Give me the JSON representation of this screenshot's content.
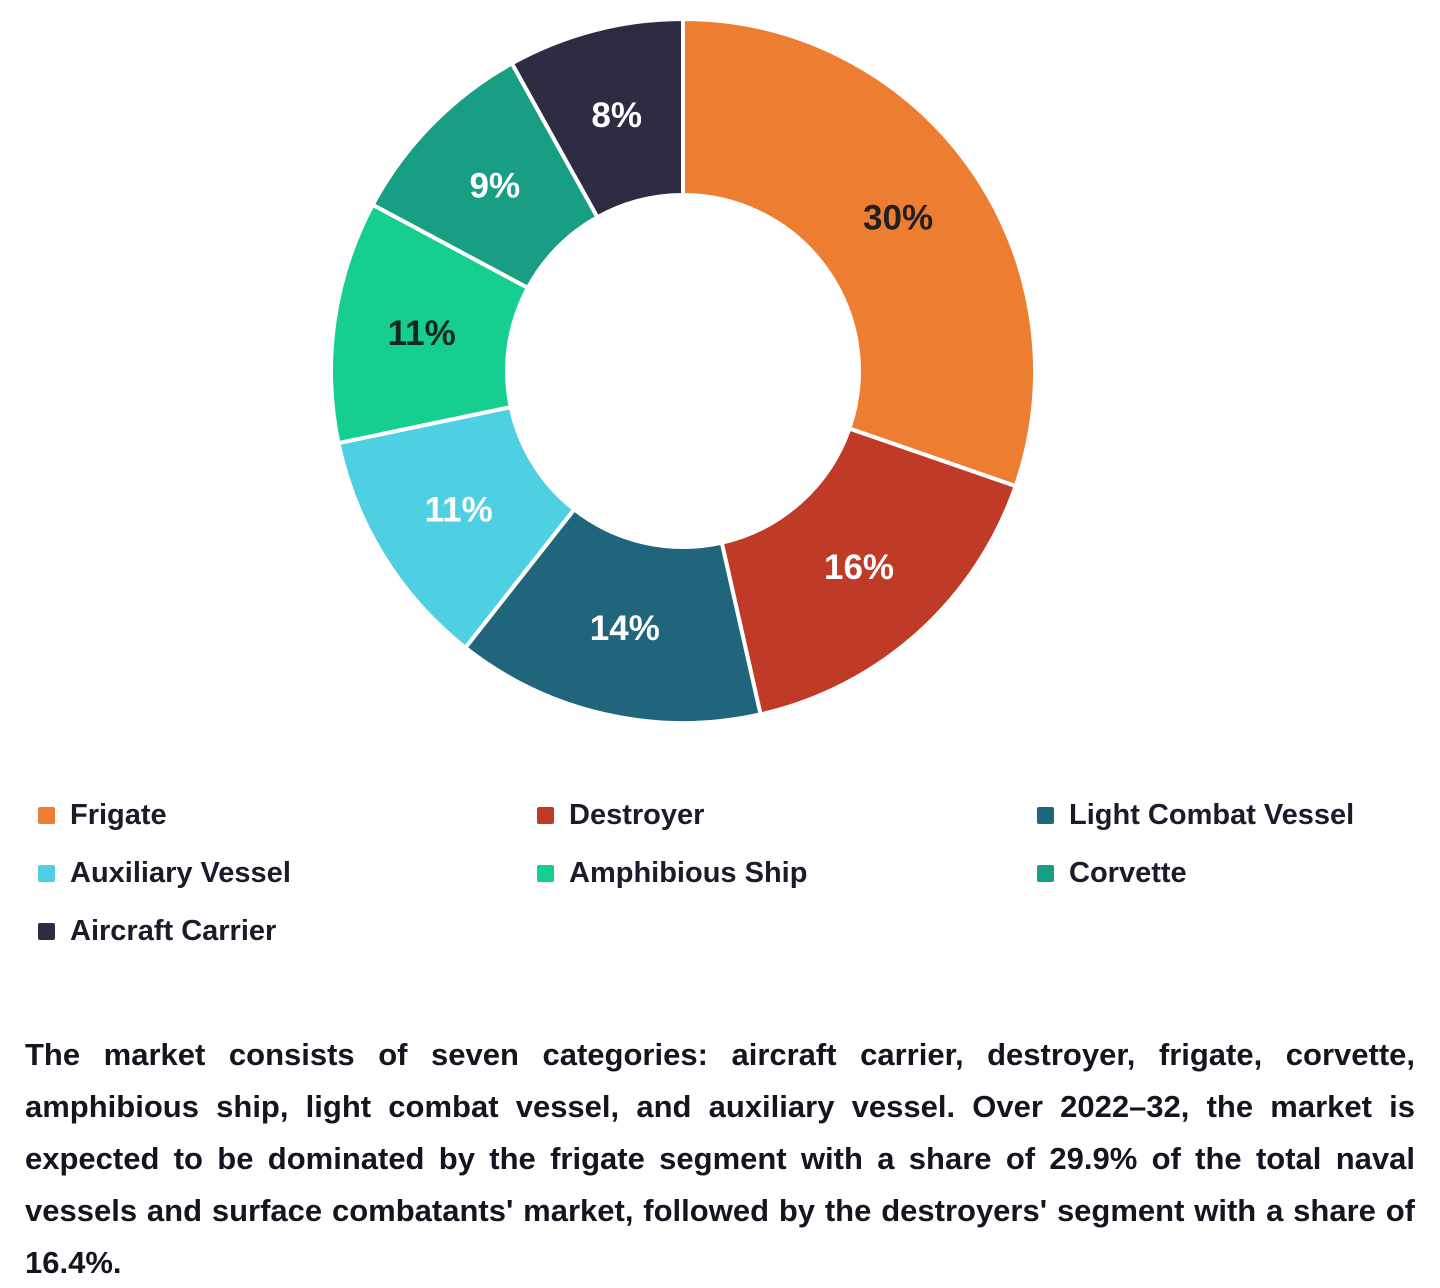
{
  "chart_data": {
    "type": "pie",
    "subtype": "donut",
    "title": "",
    "categories": [
      "Frigate",
      "Destroyer",
      "Light Combat Vessel",
      "Auxiliary Vessel",
      "Amphibious Ship",
      "Corvette",
      "Aircraft Carrier"
    ],
    "values": [
      30,
      16,
      14,
      11,
      11,
      9,
      8
    ],
    "data_labels": [
      "30%",
      "16%",
      "14%",
      "11%",
      "11%",
      "9%",
      "8%"
    ],
    "colors": [
      "#ED7D31",
      "#C03A28",
      "#20657B",
      "#4ED0E2",
      "#15CE8F",
      "#189E82",
      "#2E2C43"
    ],
    "data_label_colors": [
      "#202020",
      "#FFFFFF",
      "#FFFFFF",
      "#FFFFFF",
      "#12291F",
      "#FFFFFF",
      "#FFFFFF"
    ],
    "start_angle_deg": 0,
    "direction": "clockwise",
    "inner_radius_ratio": 0.5,
    "slice_separator_color": "#FFFFFF",
    "legend_position": "bottom",
    "gridlines": false
  },
  "legend": {
    "items": [
      {
        "label": "Frigate",
        "color": "#ED7D31"
      },
      {
        "label": "Destroyer",
        "color": "#C03A28"
      },
      {
        "label": "Light Combat Vessel",
        "color": "#20657B"
      },
      {
        "label": "Auxiliary Vessel",
        "color": "#4ED0E2"
      },
      {
        "label": "Amphibious Ship",
        "color": "#15CE8F"
      },
      {
        "label": "Corvette",
        "color": "#189E82"
      },
      {
        "label": "Aircraft Carrier",
        "color": "#2E2C43"
      }
    ]
  },
  "description": "The market consists of seven categories: aircraft carrier, destroyer, frigate, corvette, amphibious ship, light combat vessel, and auxiliary vessel. Over 2022–32, the market is expected to be dominated by the frigate segment with a share of 29.9% of the total naval vessels and surface combatants' market, followed by the destroyers' segment with a share of 16.4%."
}
